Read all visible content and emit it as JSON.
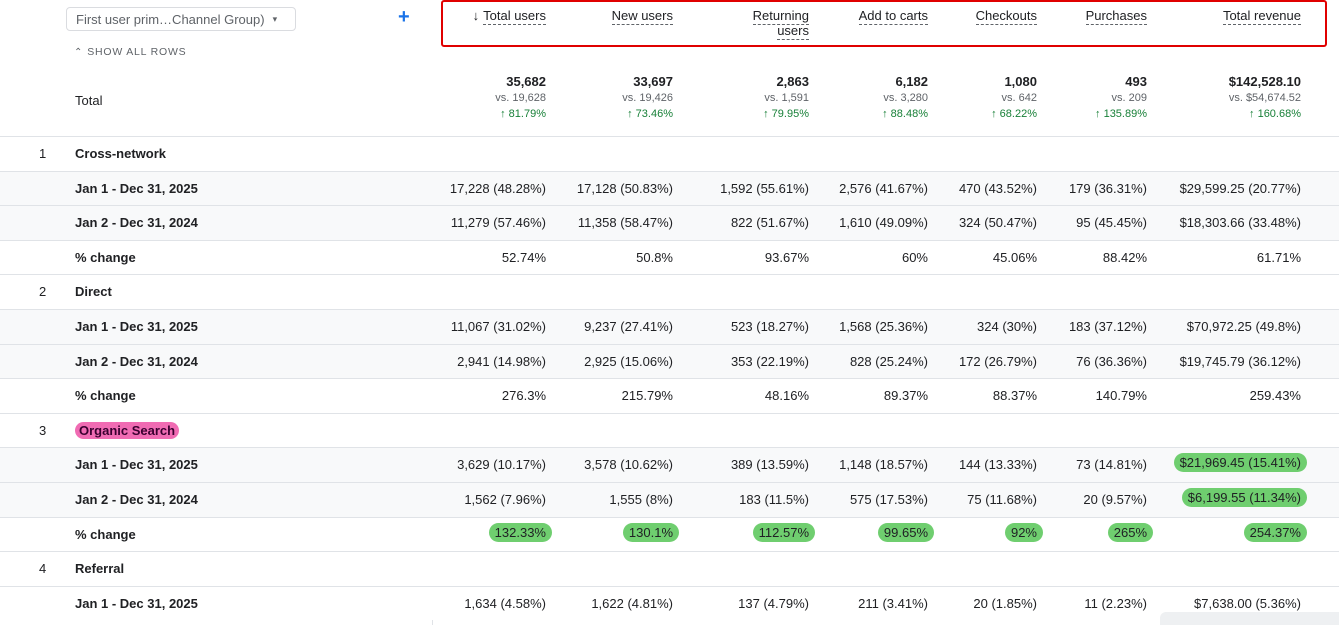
{
  "dimension_selector": {
    "label": "First user prim…Channel Group)",
    "caret": "▾"
  },
  "add_icon": "+",
  "show_rows": {
    "icon": "⌃⌄",
    "label": "SHOW ALL ROWS"
  },
  "columns": [
    {
      "label": "Total users",
      "sorted": "↓"
    },
    {
      "label": "New users"
    },
    {
      "label": "Returning users"
    },
    {
      "label": "Add to carts"
    },
    {
      "label": "Checkouts"
    },
    {
      "label": "Purchases"
    },
    {
      "label": "Total revenue"
    }
  ],
  "total": {
    "label": "Total",
    "values": [
      "35,682",
      "33,697",
      "2,863",
      "6,182",
      "1,080",
      "493",
      "$142,528.10"
    ],
    "vs": [
      "vs. 19,628",
      "vs. 19,426",
      "vs. 1,591",
      "vs. 3,280",
      "vs. 642",
      "vs. 209",
      "vs. $54,674.52"
    ],
    "change": [
      "↑ 81.79%",
      "↑ 73.46%",
      "↑ 79.95%",
      "↑ 88.48%",
      "↑ 68.22%",
      "↑ 135.89%",
      "↑ 160.68%"
    ]
  },
  "groups": [
    {
      "index": "1",
      "name": "Cross-network",
      "rows": [
        {
          "label": "Jan 1 - Dec 31, 2025",
          "values": [
            "17,228 (48.28%)",
            "17,128 (50.83%)",
            "1,592 (55.61%)",
            "2,576 (41.67%)",
            "470 (43.52%)",
            "179 (36.31%)",
            "$29,599.25 (20.77%)"
          ]
        },
        {
          "label": "Jan 2 - Dec 31, 2024",
          "values": [
            "11,279 (57.46%)",
            "11,358 (58.47%)",
            "822 (51.67%)",
            "1,610 (49.09%)",
            "324 (50.47%)",
            "95 (45.45%)",
            "$18,303.66 (33.48%)"
          ]
        },
        {
          "label": "% change",
          "values": [
            "52.74%",
            "50.8%",
            "93.67%",
            "60%",
            "45.06%",
            "88.42%",
            "61.71%"
          ]
        }
      ]
    },
    {
      "index": "2",
      "name": "Direct",
      "rows": [
        {
          "label": "Jan 1 - Dec 31, 2025",
          "values": [
            "11,067 (31.02%)",
            "9,237 (27.41%)",
            "523 (18.27%)",
            "1,568 (25.36%)",
            "324 (30%)",
            "183 (37.12%)",
            "$70,972.25 (49.8%)"
          ]
        },
        {
          "label": "Jan 2 - Dec 31, 2024",
          "values": [
            "2,941 (14.98%)",
            "2,925 (15.06%)",
            "353 (22.19%)",
            "828 (25.24%)",
            "172 (26.79%)",
            "76 (36.36%)",
            "$19,745.79 (36.12%)"
          ]
        },
        {
          "label": "% change",
          "values": [
            "276.3%",
            "215.79%",
            "48.16%",
            "89.37%",
            "88.37%",
            "140.79%",
            "259.43%"
          ]
        }
      ]
    },
    {
      "index": "3",
      "name": "Organic Search",
      "rows": [
        {
          "label": "Jan 1 - Dec 31, 2025",
          "values": [
            "3,629 (10.17%)",
            "3,578 (10.62%)",
            "389 (13.59%)",
            "1,148 (18.57%)",
            "144 (13.33%)",
            "73 (14.81%)",
            "$21,969.45 (15.41%)"
          ]
        },
        {
          "label": "Jan 2 - Dec 31, 2024",
          "values": [
            "1,562 (7.96%)",
            "1,555 (8%)",
            "183 (11.5%)",
            "575 (17.53%)",
            "75 (11.68%)",
            "20 (9.57%)",
            "$6,199.55 (11.34%)"
          ]
        },
        {
          "label": "% change",
          "values": [
            "132.33%",
            "130.1%",
            "112.57%",
            "99.65%",
            "92%",
            "265%",
            "254.37%"
          ]
        }
      ]
    },
    {
      "index": "4",
      "name": "Referral",
      "rows": [
        {
          "label": "Jan 1 - Dec 31, 2025",
          "values": [
            "1,634 (4.58%)",
            "1,622 (4.81%)",
            "137 (4.79%)",
            "211 (3.41%)",
            "20 (1.85%)",
            "11 (2.23%)",
            "$7,638.00 (5.36%)"
          ]
        }
      ]
    }
  ],
  "colors": {
    "accent": "#1a73e8",
    "positive": "#188038",
    "highlight_box": "#e00000",
    "highlight_pink": "#f06bb3",
    "highlight_green": "#6fce6f"
  }
}
